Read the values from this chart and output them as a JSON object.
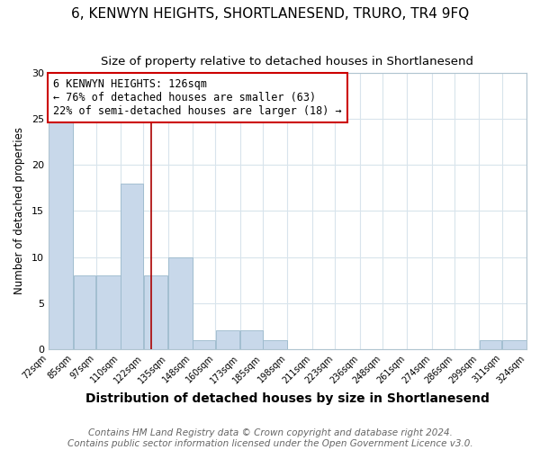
{
  "title": "6, KENWYN HEIGHTS, SHORTLANESEND, TRURO, TR4 9FQ",
  "subtitle": "Size of property relative to detached houses in Shortlanesend",
  "xlabel": "Distribution of detached houses by size in Shortlanesend",
  "ylabel": "Number of detached properties",
  "footer_lines": [
    "Contains HM Land Registry data © Crown copyright and database right 2024.",
    "Contains public sector information licensed under the Open Government Licence v3.0."
  ],
  "bin_edges": [
    72,
    85,
    97,
    110,
    122,
    135,
    148,
    160,
    173,
    185,
    198,
    211,
    223,
    236,
    248,
    261,
    274,
    286,
    299,
    311,
    324
  ],
  "counts": [
    25,
    8,
    8,
    18,
    8,
    10,
    1,
    2,
    2,
    1,
    0,
    0,
    0,
    0,
    0,
    0,
    0,
    0,
    1,
    1
  ],
  "bar_color": "#c8d8ea",
  "bar_edge_color": "#9ab8cc",
  "vline_x": 126,
  "vline_color": "#aa0000",
  "annotation_text": "6 KENWYN HEIGHTS: 126sqm\n← 76% of detached houses are smaller (63)\n22% of semi-detached houses are larger (18) →",
  "annotation_box_color": "white",
  "annotation_box_edge_color": "#cc0000",
  "ylim": [
    0,
    30
  ],
  "yticks": [
    0,
    5,
    10,
    15,
    20,
    25,
    30
  ],
  "grid_color": "#d8e4ec",
  "title_fontsize": 11,
  "subtitle_fontsize": 9.5,
  "xlabel_fontsize": 10,
  "ylabel_fontsize": 8.5,
  "tick_label_fontsize": 7,
  "annotation_fontsize": 8.5,
  "footer_fontsize": 7.5
}
